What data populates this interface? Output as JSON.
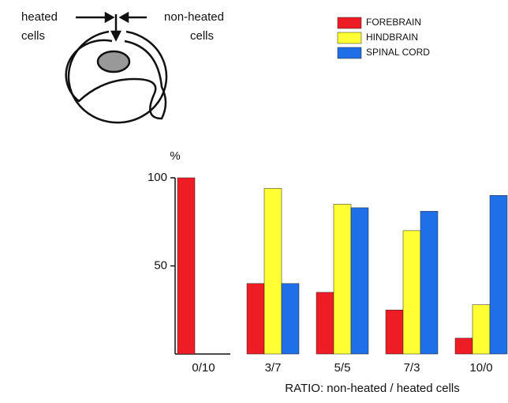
{
  "diagram": {
    "left_label": [
      "heated",
      "cells"
    ],
    "right_label": [
      "non-heated",
      "cells"
    ]
  },
  "chart_data": {
    "type": "bar",
    "y_label": "%",
    "x_label": "RATIO: non-heated / heated cells",
    "categories": [
      "0/10",
      "3/7",
      "5/5",
      "7/3",
      "10/0"
    ],
    "series": [
      {
        "name": "FOREBRAIN",
        "color": "#ee1c24",
        "values": [
          100,
          40,
          35,
          25,
          9
        ]
      },
      {
        "name": "HINDBRAIN",
        "color": "#ffff33",
        "values": [
          0,
          94,
          85,
          70,
          28
        ]
      },
      {
        "name": "SPINAL CORD",
        "color": "#1f6fe8",
        "values": [
          0,
          40,
          83,
          81,
          90
        ]
      }
    ],
    "ylim": [
      0,
      100
    ],
    "yticks": [
      50,
      100
    ],
    "legend": "top-right"
  }
}
